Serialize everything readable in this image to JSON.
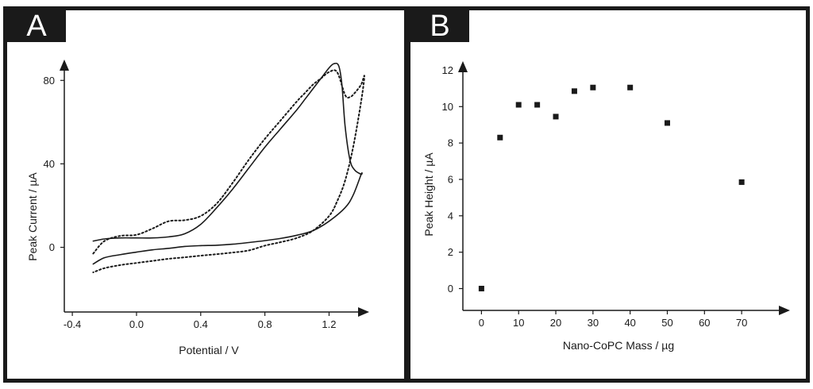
{
  "chart_data": [
    {
      "panel_label": "A",
      "type": "line",
      "xlabel": "Potential / V",
      "ylabel": "Peak Current / µA",
      "xlim": [
        -0.45,
        1.45
      ],
      "ylim": [
        -31,
        90
      ],
      "xticks": [
        "-0.4",
        "0.0",
        "0.4",
        "0.8",
        "1.2"
      ],
      "yticks": [
        "0",
        "40",
        "80"
      ],
      "series": [
        {
          "name": "solid",
          "style": "solid",
          "x": [
            -0.27,
            -0.2,
            -0.1,
            0.0,
            0.1,
            0.2,
            0.3,
            0.4,
            0.5,
            0.6,
            0.7,
            0.8,
            0.9,
            1.0,
            1.05,
            1.1,
            1.15,
            1.2,
            1.23,
            1.26,
            1.28,
            1.3,
            1.33,
            1.36,
            1.4,
            1.4,
            1.35,
            1.3,
            1.2,
            1.1,
            1.0,
            0.9,
            0.8,
            0.7,
            0.6,
            0.5,
            0.4,
            0.3,
            0.2,
            0.1,
            0.0,
            -0.1,
            -0.2,
            -0.27
          ],
          "y": [
            3,
            4,
            4.5,
            4.5,
            4.5,
            5,
            6.5,
            11,
            19,
            28,
            38,
            48,
            57,
            66,
            71,
            76,
            81,
            86,
            88,
            87,
            78,
            58,
            42,
            37,
            35,
            35,
            25,
            19,
            12.5,
            8,
            5.8,
            4.3,
            3.2,
            2.3,
            1.5,
            1,
            0.8,
            0.4,
            -0.5,
            -1.2,
            -2.3,
            -3.5,
            -5,
            -8
          ]
        },
        {
          "name": "dotted",
          "style": "dotted",
          "x": [
            -0.27,
            -0.2,
            -0.1,
            0.0,
            0.1,
            0.2,
            0.3,
            0.4,
            0.5,
            0.6,
            0.7,
            0.8,
            0.9,
            1.0,
            1.05,
            1.1,
            1.15,
            1.2,
            1.25,
            1.3,
            1.33,
            1.36,
            1.4,
            1.42,
            1.4,
            1.35,
            1.3,
            1.25,
            1.2,
            1.1,
            1.0,
            0.9,
            0.8,
            0.7,
            0.6,
            0.5,
            0.4,
            0.3,
            0.2,
            0.1,
            0.0,
            -0.1,
            -0.2,
            -0.27
          ],
          "y": [
            -3,
            3,
            5.5,
            6,
            9,
            12.5,
            13,
            15,
            21,
            31,
            42,
            52,
            61,
            70,
            74,
            78,
            81,
            84,
            84,
            73,
            72,
            74,
            78,
            82,
            70,
            48,
            32,
            22,
            15,
            8,
            4.5,
            2.5,
            0.8,
            -1.5,
            -2.5,
            -3.3,
            -4,
            -4.8,
            -5.5,
            -6.5,
            -7.5,
            -8.5,
            -10,
            -12
          ]
        }
      ]
    },
    {
      "panel_label": "B",
      "type": "scatter",
      "xlabel": "Nano-CoPC Mass / µg",
      "ylabel": "Peak Height / µA",
      "xlim": [
        -5,
        83
      ],
      "ylim": [
        -1.2,
        12.5
      ],
      "xticks": [
        "0",
        "10",
        "20",
        "30",
        "40",
        "50",
        "60",
        "70"
      ],
      "yticks": [
        "0",
        "2",
        "4",
        "6",
        "8",
        "10",
        "12"
      ],
      "x": [
        0,
        5,
        10,
        15,
        20,
        25,
        30,
        40,
        50,
        70
      ],
      "y": [
        0.0,
        8.3,
        10.1,
        10.1,
        9.45,
        10.85,
        11.05,
        11.05,
        9.1,
        5.85
      ]
    }
  ]
}
